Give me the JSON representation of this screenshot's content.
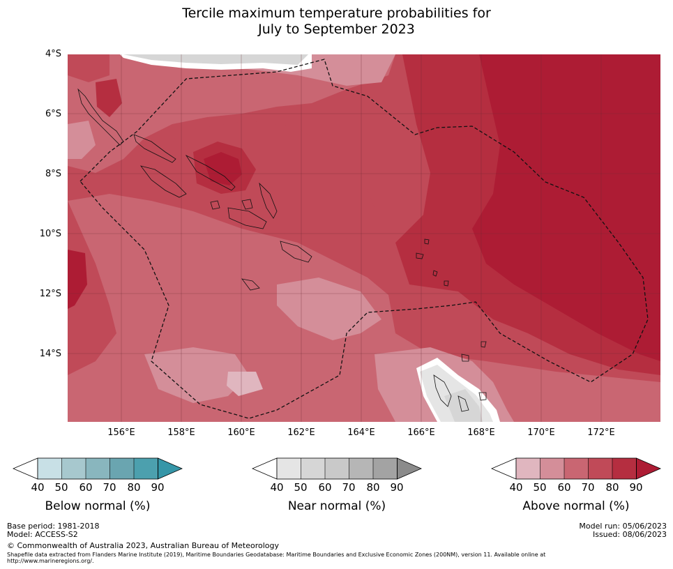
{
  "title": {
    "line1": "Tercile maximum temperature probabilities for",
    "line2": "July to September 2023"
  },
  "map": {
    "lat_ticks": [
      "4°S",
      "6°S",
      "8°S",
      "10°S",
      "12°S",
      "14°S"
    ],
    "lon_ticks": [
      "156°E",
      "158°E",
      "160°E",
      "162°E",
      "164°E",
      "166°E",
      "168°E",
      "170°E",
      "172°E"
    ],
    "colors": {
      "above_40": "#e0b6bf",
      "above_50": "#d48e99",
      "above_60": "#c96672",
      "above_70": "#c04a58",
      "above_80": "#b52e40",
      "above_90": "#ad1c34",
      "near_40": "#e5e5e5",
      "near_50": "#d6d6d6",
      "below_40": "#c8e0e6"
    }
  },
  "colorbars": [
    {
      "title": "Below normal (%)",
      "ticks": [
        "40",
        "50",
        "60",
        "70",
        "80",
        "90"
      ],
      "colors": [
        "#c8e0e6",
        "#a7c8ce",
        "#89b6be",
        "#6aa5b0",
        "#4ca0ae",
        "#3596a8"
      ]
    },
    {
      "title": "Near normal (%)",
      "ticks": [
        "40",
        "50",
        "60",
        "70",
        "80",
        "90"
      ],
      "colors": [
        "#e5e5e5",
        "#d6d6d6",
        "#c9c9c9",
        "#b6b6b6",
        "#a3a3a3",
        "#8b8b8b"
      ]
    },
    {
      "title": "Above normal (%)",
      "ticks": [
        "40",
        "50",
        "60",
        "70",
        "80",
        "90"
      ],
      "colors": [
        "#e0b6bf",
        "#d48e99",
        "#c96672",
        "#c04a58",
        "#b52e40",
        "#ad1c34"
      ]
    }
  ],
  "footer": {
    "base_period": "Base period: 1981-2018",
    "model": "Model: ACCESS-S2",
    "model_run": "Model run: 05/06/2023",
    "issued": "Issued: 08/06/2023",
    "copyright": "© Commonwealth of Australia 2023, Australian Bureau of Meteorology",
    "shapefile_1": "Shapefile data extracted from Flanders Marine Institute (2019), Maritime Boundaries Geodatabase: Maritime Boundaries and Exclusive Economic Zones (200NM), version 11. Available online at",
    "shapefile_2": "http://www.marineregions.org/."
  }
}
